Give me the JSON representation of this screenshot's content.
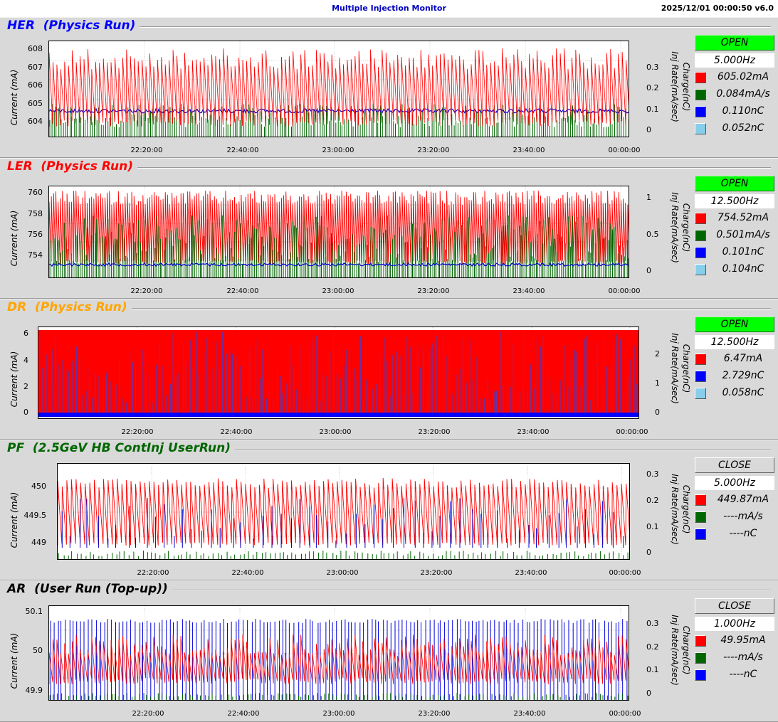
{
  "app": {
    "title": "Multiple Injection Monitor",
    "timestamp": "2025/12/01 00:00:50   v6.0"
  },
  "common": {
    "y_left_label": "Current (mA)",
    "y_right_label_1": "Charge(nC)",
    "y_right_label_2": "Inj Rate(mA/sec)",
    "x_ticks": [
      "22:20:00",
      "22:40:00",
      "23:00:00",
      "23:20:00",
      "23:40:00",
      "00:00:00"
    ]
  },
  "panels": [
    {
      "id": "her",
      "title": "HER  (Physics Run)",
      "title_color": "#0000ff",
      "status": "OPEN",
      "status_color": "#00ff00",
      "frequency": "5.000Hz",
      "readouts": [
        {
          "color": "#ff0000",
          "value": "605.02mA"
        },
        {
          "color": "#006600",
          "value": "0.084mA/s"
        },
        {
          "color": "#0000ff",
          "value": "0.110nC"
        },
        {
          "color": "#87ceeb",
          "value": "0.052nC"
        }
      ],
      "left_ticks": [
        "608",
        "607",
        "606",
        "605",
        "604"
      ],
      "right_ticks": [
        "0.3",
        "0.2",
        "0.1",
        "0"
      ]
    },
    {
      "id": "ler",
      "title": "LER  (Physics Run)",
      "title_color": "#ff0000",
      "status": "OPEN",
      "status_color": "#00ff00",
      "frequency": "12.500Hz",
      "readouts": [
        {
          "color": "#ff0000",
          "value": "754.52mA"
        },
        {
          "color": "#006600",
          "value": "0.501mA/s"
        },
        {
          "color": "#0000ff",
          "value": "0.101nC"
        },
        {
          "color": "#87ceeb",
          "value": "0.104nC"
        }
      ],
      "left_ticks": [
        "760",
        "758",
        "756",
        "754"
      ],
      "right_ticks": [
        "1",
        "0.5",
        "0"
      ]
    },
    {
      "id": "dr",
      "title": "DR  (Physics Run)",
      "title_color": "#ffa500",
      "status": "OPEN",
      "status_color": "#00ff00",
      "frequency": "12.500Hz",
      "readouts": [
        {
          "color": "#ff0000",
          "value": "6.47mA"
        },
        {
          "color": "#0000ff",
          "value": "2.729nC"
        },
        {
          "color": "#87ceeb",
          "value": "0.058nC"
        }
      ],
      "left_ticks": [
        "6",
        "4",
        "2",
        "0"
      ],
      "right_ticks": [
        "2",
        "1",
        "0"
      ]
    },
    {
      "id": "pf",
      "title": "PF  (2.5GeV HB ContInj UserRun)",
      "title_color": "#006600",
      "status": "CLOSE",
      "status_color": "#d9d9d9",
      "frequency": "5.000Hz",
      "readouts": [
        {
          "color": "#ff0000",
          "value": "449.87mA"
        },
        {
          "color": "#006600",
          "value": "----mA/s"
        },
        {
          "color": "#0000ff",
          "value": "----nC"
        }
      ],
      "left_ticks": [
        "450",
        "449.5",
        "449"
      ],
      "right_ticks": [
        "0.3",
        "0.2",
        "0.1",
        "0"
      ]
    },
    {
      "id": "ar",
      "title": "AR  (User Run (Top-up))",
      "title_color": "#000000",
      "status": "CLOSE",
      "status_color": "#d9d9d9",
      "frequency": "1.000Hz",
      "readouts": [
        {
          "color": "#ff0000",
          "value": "49.95mA"
        },
        {
          "color": "#006600",
          "value": "----mA/s"
        },
        {
          "color": "#0000ff",
          "value": "----nC"
        }
      ],
      "left_ticks": [
        "50.1",
        "50",
        "49.9"
      ],
      "right_ticks": [
        "0.3",
        "0.2",
        "0.1",
        "0"
      ]
    }
  ]
}
